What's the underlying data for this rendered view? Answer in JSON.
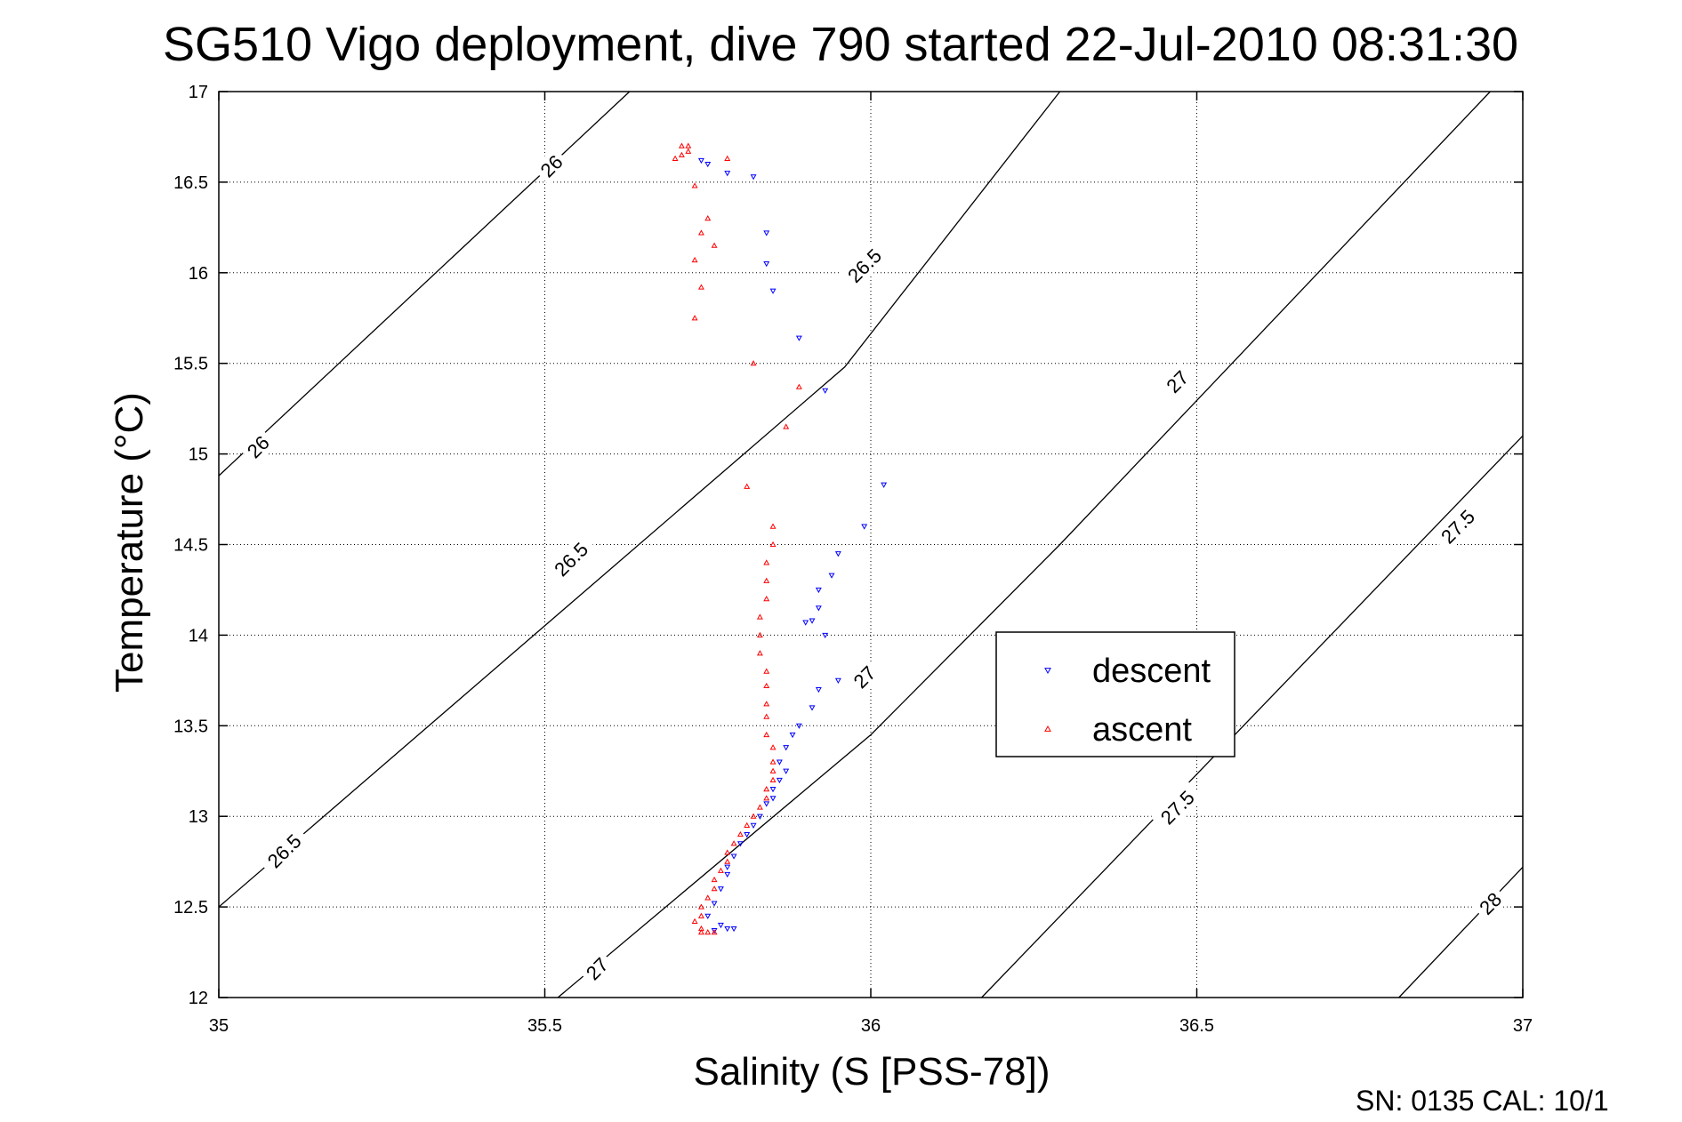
{
  "chart_data": {
    "type": "scatter",
    "title": "SG510 Vigo deployment, dive 790 started 22-Jul-2010 08:31:30",
    "xlabel": "Salinity (S [PSS-78])",
    "ylabel": "Temperature (°C)",
    "xlim": [
      35,
      37
    ],
    "ylim": [
      12,
      17
    ],
    "xticks": [
      "35",
      "35.5",
      "36",
      "36.5",
      "37"
    ],
    "yticks": [
      "12",
      "12.5",
      "13",
      "13.5",
      "14",
      "14.5",
      "15",
      "15.5",
      "16",
      "16.5",
      "17"
    ],
    "grid": true,
    "legend_position": "center-right",
    "footer": "SN: 0135  CAL: 10/1",
    "colors": {
      "descent": "#0000ff",
      "ascent": "#ff0000",
      "contour": "#000000"
    },
    "density_contours": [
      {
        "label": "26",
        "points": [
          [
            35.0,
            14.88
          ],
          [
            35.63,
            17.0
          ]
        ],
        "label_at": [
          [
            35.51,
            16.59
          ],
          [
            35.06,
            15.04
          ]
        ]
      },
      {
        "label": "26.5",
        "points": [
          [
            35.0,
            12.5
          ],
          [
            35.96,
            15.48
          ],
          [
            36.29,
            17.0
          ]
        ],
        "label_at": [
          [
            35.99,
            16.04
          ],
          [
            35.54,
            14.42
          ],
          [
            35.1,
            12.81
          ]
        ]
      },
      {
        "label": "27",
        "points": [
          [
            35.52,
            12.0
          ],
          [
            36.0,
            13.45
          ],
          [
            36.29,
            14.5
          ],
          [
            36.95,
            17.0
          ]
        ],
        "label_at": [
          [
            35.58,
            12.16
          ],
          [
            35.99,
            13.77
          ],
          [
            36.47,
            15.4
          ]
        ]
      },
      {
        "label": "27.5",
        "points": [
          [
            36.17,
            12.0
          ],
          [
            37.0,
            15.1
          ]
        ],
        "label_at": [
          [
            36.47,
            13.05
          ],
          [
            36.9,
            14.6
          ]
        ]
      },
      {
        "label": "28",
        "points": [
          [
            36.81,
            12.0
          ],
          [
            37.0,
            12.72
          ]
        ],
        "label_at": [
          [
            36.95,
            12.52
          ]
        ]
      }
    ],
    "series": [
      {
        "name": "descent",
        "marker": "triangle-down",
        "points": [
          [
            35.74,
            16.62
          ],
          [
            35.75,
            16.6
          ],
          [
            35.78,
            16.55
          ],
          [
            35.82,
            16.53
          ],
          [
            35.84,
            16.22
          ],
          [
            35.84,
            16.05
          ],
          [
            35.85,
            15.9
          ],
          [
            35.89,
            15.64
          ],
          [
            35.93,
            15.35
          ],
          [
            36.02,
            14.83
          ],
          [
            35.99,
            14.6
          ],
          [
            35.95,
            14.45
          ],
          [
            35.94,
            14.33
          ],
          [
            35.92,
            14.25
          ],
          [
            35.92,
            14.15
          ],
          [
            35.91,
            14.08
          ],
          [
            35.9,
            14.07
          ],
          [
            35.93,
            14.0
          ],
          [
            35.95,
            13.75
          ],
          [
            35.92,
            13.7
          ],
          [
            35.91,
            13.6
          ],
          [
            35.89,
            13.5
          ],
          [
            35.88,
            13.45
          ],
          [
            35.87,
            13.38
          ],
          [
            35.86,
            13.3
          ],
          [
            35.87,
            13.25
          ],
          [
            35.86,
            13.2
          ],
          [
            35.85,
            13.15
          ],
          [
            35.85,
            13.1
          ],
          [
            35.84,
            13.07
          ],
          [
            35.83,
            13.0
          ],
          [
            35.82,
            12.95
          ],
          [
            35.81,
            12.9
          ],
          [
            35.8,
            12.85
          ],
          [
            35.79,
            12.78
          ],
          [
            35.78,
            12.72
          ],
          [
            35.78,
            12.68
          ],
          [
            35.77,
            12.6
          ],
          [
            35.76,
            12.52
          ],
          [
            35.75,
            12.45
          ],
          [
            35.77,
            12.4
          ],
          [
            35.78,
            12.38
          ],
          [
            35.79,
            12.38
          ],
          [
            35.76,
            12.37
          ]
        ]
      },
      {
        "name": "ascent",
        "marker": "triangle-up",
        "points": [
          [
            35.71,
            16.7
          ],
          [
            35.72,
            16.7
          ],
          [
            35.72,
            16.67
          ],
          [
            35.71,
            16.65
          ],
          [
            35.7,
            16.63
          ],
          [
            35.78,
            16.63
          ],
          [
            35.73,
            16.48
          ],
          [
            35.75,
            16.3
          ],
          [
            35.74,
            16.22
          ],
          [
            35.76,
            16.15
          ],
          [
            35.73,
            16.07
          ],
          [
            35.74,
            15.92
          ],
          [
            35.73,
            15.75
          ],
          [
            35.82,
            15.5
          ],
          [
            35.89,
            15.37
          ],
          [
            35.87,
            15.15
          ],
          [
            35.81,
            14.82
          ],
          [
            35.85,
            14.6
          ],
          [
            35.85,
            14.5
          ],
          [
            35.84,
            14.4
          ],
          [
            35.84,
            14.3
          ],
          [
            35.84,
            14.2
          ],
          [
            35.83,
            14.1
          ],
          [
            35.83,
            14.0
          ],
          [
            35.83,
            13.9
          ],
          [
            35.84,
            13.8
          ],
          [
            35.84,
            13.72
          ],
          [
            35.84,
            13.62
          ],
          [
            35.84,
            13.55
          ],
          [
            35.84,
            13.45
          ],
          [
            35.85,
            13.38
          ],
          [
            35.85,
            13.3
          ],
          [
            35.85,
            13.25
          ],
          [
            35.85,
            13.2
          ],
          [
            35.84,
            13.15
          ],
          [
            35.84,
            13.1
          ],
          [
            35.83,
            13.05
          ],
          [
            35.82,
            13.0
          ],
          [
            35.81,
            12.95
          ],
          [
            35.8,
            12.9
          ],
          [
            35.79,
            12.85
          ],
          [
            35.78,
            12.8
          ],
          [
            35.78,
            12.75
          ],
          [
            35.77,
            12.7
          ],
          [
            35.76,
            12.65
          ],
          [
            35.76,
            12.6
          ],
          [
            35.75,
            12.55
          ],
          [
            35.74,
            12.5
          ],
          [
            35.74,
            12.45
          ],
          [
            35.73,
            12.42
          ],
          [
            35.74,
            12.38
          ],
          [
            35.74,
            12.36
          ],
          [
            35.75,
            12.36
          ],
          [
            35.76,
            12.36
          ]
        ]
      }
    ]
  }
}
